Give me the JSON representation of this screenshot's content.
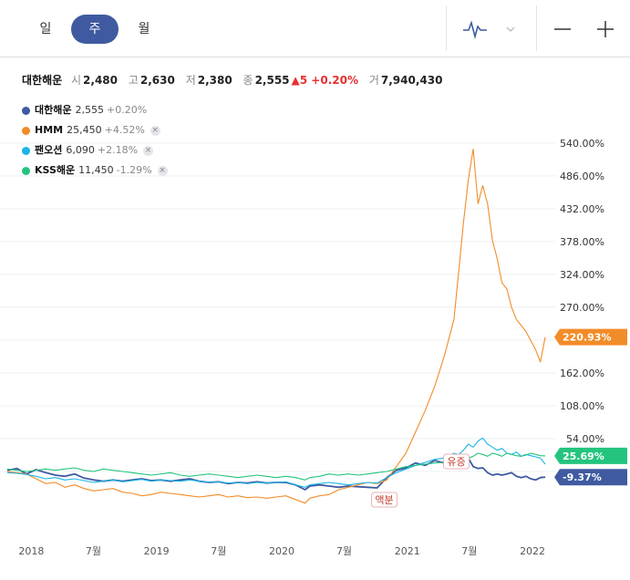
{
  "tabs": {
    "day": "일",
    "week": "주",
    "month": "월"
  },
  "toolbar": {
    "chart_icon": "line-chart-icon",
    "chevron_icon": "chevron-down-icon",
    "zoom_out": "minus-icon",
    "zoom_in": "plus-icon"
  },
  "quote": {
    "name": "대한해운",
    "open_label": "시",
    "open": "2,480",
    "high_label": "고",
    "high": "2,630",
    "low_label": "저",
    "low": "2,380",
    "close_label": "종",
    "close": "2,555",
    "change": "▲5 +0.20%",
    "volume_label": "거",
    "volume": "7,940,430"
  },
  "legend": [
    {
      "name": "대한해운",
      "price": "2,555",
      "change": "+0.20%",
      "color": "#3f5aa0",
      "removable": false
    },
    {
      "name": "HMM",
      "price": "25,450",
      "change": "+4.52%",
      "color": "#f28c28",
      "removable": true
    },
    {
      "name": "팬오션",
      "price": "6,090",
      "change": "+2.18%",
      "color": "#1ab4e6",
      "removable": true
    },
    {
      "name": "KSS해운",
      "price": "11,450",
      "change": "-1.29%",
      "color": "#24c47e",
      "removable": true
    }
  ],
  "chart_data": {
    "type": "line",
    "x": [
      "2017-10-23",
      "2017-11-20",
      "2017-12-18",
      "2018-01-15",
      "2018-02-12",
      "2018-03-12",
      "2018-04-09",
      "2018-05-07",
      "2018-06-04",
      "2018-07-02",
      "2018-07-30",
      "2018-08-27",
      "2018-09-24",
      "2018-10-22",
      "2018-11-19",
      "2018-12-17",
      "2019-01-14",
      "2019-02-11",
      "2019-03-11",
      "2019-04-08",
      "2019-05-06",
      "2019-06-03",
      "2019-07-01",
      "2019-07-29",
      "2019-08-26",
      "2019-09-23",
      "2019-10-21",
      "2019-11-18",
      "2019-12-16",
      "2020-01-13",
      "2020-02-10",
      "2020-03-09",
      "2020-03-23",
      "2020-04-20",
      "2020-05-18",
      "2020-06-15",
      "2020-07-13",
      "2020-08-10",
      "2020-09-07",
      "2020-10-05",
      "2020-11-02",
      "2020-11-30",
      "2020-12-28",
      "2021-01-25",
      "2021-02-22",
      "2021-03-22",
      "2021-04-19",
      "2021-05-17",
      "2021-05-31",
      "2021-06-14",
      "2021-06-28",
      "2021-07-12",
      "2021-07-26",
      "2021-08-09",
      "2021-08-23",
      "2021-09-06",
      "2021-09-20",
      "2021-10-04",
      "2021-10-18",
      "2021-11-01",
      "2021-11-15",
      "2021-11-29",
      "2021-12-13",
      "2021-12-27",
      "2022-01-10",
      "2022-01-24",
      "2022-02-07"
    ],
    "series": [
      {
        "name": "대한해운",
        "color": "#3f5aa0",
        "values": [
          2,
          5,
          -4,
          3,
          -2,
          -6,
          -8,
          -4,
          -11,
          -14,
          -16,
          -14,
          -16,
          -14,
          -12,
          -15,
          -14,
          -16,
          -14,
          -12,
          -16,
          -18,
          -17,
          -20,
          -18,
          -19,
          -17,
          -19,
          -18,
          -18,
          -22,
          -30,
          -24,
          -22,
          -24,
          -26,
          -24,
          -25,
          -26,
          -27,
          -10,
          2,
          6,
          14,
          10,
          18,
          14,
          28,
          18,
          16,
          22,
          8,
          5,
          6,
          -2,
          -6,
          -4,
          -6,
          -4,
          -2,
          -8,
          -10,
          -8,
          -12,
          -14,
          -10,
          -9.37
        ]
      },
      {
        "name": "HMM",
        "color": "#f28c28",
        "values": [
          0,
          -2,
          -4,
          -12,
          -20,
          -18,
          -26,
          -22,
          -28,
          -32,
          -30,
          -28,
          -34,
          -36,
          -40,
          -38,
          -34,
          -36,
          -38,
          -40,
          -42,
          -40,
          -38,
          -42,
          -40,
          -43,
          -42,
          -44,
          -42,
          -40,
          -46,
          -52,
          -44,
          -40,
          -38,
          -30,
          -26,
          -22,
          -18,
          -20,
          -14,
          8,
          30,
          65,
          100,
          140,
          190,
          250,
          330,
          410,
          480,
          530,
          440,
          470,
          440,
          380,
          350,
          310,
          300,
          270,
          250,
          240,
          230,
          215,
          200,
          180,
          220.93
        ]
      },
      {
        "name": "팬오션",
        "color": "#1ab4e6",
        "values": [
          -2,
          -3,
          -5,
          -8,
          -12,
          -10,
          -14,
          -12,
          -15,
          -18,
          -16,
          -14,
          -17,
          -15,
          -13,
          -16,
          -14,
          -15,
          -16,
          -14,
          -16,
          -18,
          -17,
          -19,
          -18,
          -20,
          -18,
          -19,
          -18,
          -17,
          -22,
          -26,
          -22,
          -20,
          -18,
          -20,
          -22,
          -20,
          -18,
          -19,
          -10,
          -2,
          4,
          10,
          15,
          20,
          22,
          30,
          28,
          35,
          45,
          40,
          50,
          55,
          45,
          40,
          35,
          38,
          30,
          28,
          32,
          25,
          28,
          26,
          24,
          22,
          12
        ]
      },
      {
        "name": "KSS해운",
        "color": "#24c47e",
        "values": [
          4,
          2,
          0,
          2,
          4,
          2,
          4,
          6,
          2,
          0,
          4,
          2,
          0,
          -2,
          -4,
          -6,
          -4,
          -2,
          -6,
          -8,
          -6,
          -4,
          -6,
          -8,
          -10,
          -8,
          -6,
          -8,
          -10,
          -8,
          -10,
          -14,
          -10,
          -8,
          -4,
          -6,
          -4,
          -6,
          -4,
          -2,
          0,
          4,
          8,
          10,
          12,
          14,
          15,
          18,
          20,
          18,
          22,
          25,
          30,
          28,
          25,
          30,
          28,
          25,
          30,
          28,
          26,
          25,
          27,
          30,
          28,
          26,
          25.69
        ]
      }
    ],
    "y_ticks": [
      "540.00%",
      "486.00%",
      "432.00%",
      "378.00%",
      "324.00%",
      "270.00%",
      "162.00%",
      "108.00%",
      "54.00%"
    ],
    "x_ticks": [
      "2018",
      "7월",
      "2019",
      "7월",
      "2020",
      "7월",
      "2021",
      "7월",
      "2022"
    ],
    "last_labels": [
      {
        "text": "220.93%",
        "color": "#f28c28"
      },
      {
        "text": "25.69%",
        "color": "#24c47e"
      },
      {
        "text": "-9.37%",
        "color": "#3f5aa0"
      }
    ],
    "annotations": [
      {
        "text": "유증",
        "date": "2021-05-24"
      },
      {
        "text": "액분",
        "date": "2020-10-26"
      }
    ]
  }
}
